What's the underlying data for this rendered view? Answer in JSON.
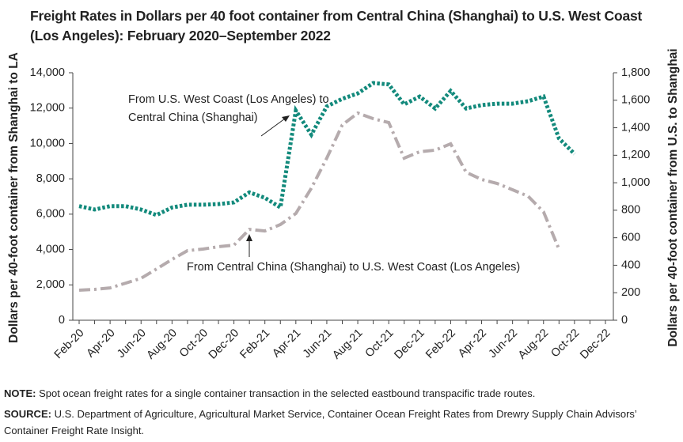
{
  "chart_data": {
    "type": "line",
    "title": "Freight Rates in Dollars per 40 foot container from Central China (Shanghai) to U.S. West Coast (Los Angeles): February 2020–September 2022",
    "ylabel": "Dollars per 40-foot container from Shanghai to LA",
    "y2label": "Dollars per 40-foot container from U.S. to Shanghai",
    "categories": [
      "Feb-20",
      null,
      "Apr-20",
      null,
      "Jun-20",
      null,
      "Aug-20",
      null,
      "Oct-20",
      null,
      "Dec-20",
      null,
      "Feb-21",
      null,
      "Apr-21",
      null,
      "Jun-21",
      null,
      "Aug-21",
      null,
      "Oct-21",
      null,
      "Dec-21",
      null,
      "Feb-22",
      null,
      "Apr-22",
      null,
      "Jun-22",
      null,
      "Aug-22",
      null,
      "Oct-22",
      null,
      "Dec-22"
    ],
    "ylim": [
      0,
      14000
    ],
    "yticks": [
      0,
      {
        "value": 2000,
        "label": "2,000"
      },
      {
        "value": 4000,
        "label": "4,000"
      },
      {
        "value": 6000,
        "label": "6,000"
      },
      {
        "value": 8000,
        "label": "8,000"
      },
      {
        "value": 10000,
        "label": "10,000"
      },
      {
        "value": 12000,
        "label": "12,000"
      },
      {
        "value": 14000,
        "label": "14,000"
      }
    ],
    "y2lim": [
      0,
      1800
    ],
    "y2ticks": [
      0,
      200,
      400,
      600,
      800,
      {
        "value": 1000,
        "label": "1,000"
      },
      {
        "value": 1200,
        "label": "1,200"
      },
      {
        "value": 1400,
        "label": "1,400"
      },
      {
        "value": 1600,
        "label": "1,600"
      },
      {
        "value": 1800,
        "label": "1,800"
      }
    ],
    "grid": false,
    "series": [
      {
        "name": "From Central China (Shanghai) to U.S. West Coast (Los Angeles)",
        "color": "#b5abad",
        "axis": "y",
        "values": [
          1700,
          1745,
          1830,
          2100,
          2370,
          2900,
          3440,
          3935,
          4025,
          4160,
          4250,
          5140,
          5050,
          5410,
          6040,
          7470,
          9170,
          11050,
          11720,
          11400,
          11180,
          9170,
          9530,
          9620,
          9980,
          8370,
          7960,
          7740,
          7380,
          7020,
          6130,
          4025,
          null,
          null,
          null
        ]
      },
      {
        "name": "From U.S. West Coast (Los Angeles) to Central China (Shanghai)",
        "color": "#138a7c",
        "axis": "y2",
        "values": [
          830,
          805,
          830,
          830,
          805,
          765,
          820,
          840,
          840,
          845,
          857,
          930,
          890,
          820,
          1525,
          1350,
          1555,
          1610,
          1650,
          1725,
          1715,
          1570,
          1627,
          1540,
          1668,
          1540,
          1565,
          1575,
          1575,
          1593,
          1627,
          1322,
          1210,
          null,
          null
        ]
      }
    ],
    "annotations": [
      {
        "text": [
          "From U.S. West Coast (Los Angeles) to",
          "Central China (Shanghai)"
        ]
      },
      {
        "text": [
          "From Central China (Shanghai) to U.S. West Coast (Los Angeles)"
        ]
      }
    ],
    "note_label": "NOTE:",
    "note": "Spot ocean freight rates for a single container transaction in the selected eastbound transpacific trade routes.",
    "source_label": "SOURCE:",
    "source": "U.S. Department of Agriculture, Agricultural Market Service, Container Ocean Freight Rates from Drewry Supply Chain Advisors’ Container Freight Rate Insight."
  }
}
